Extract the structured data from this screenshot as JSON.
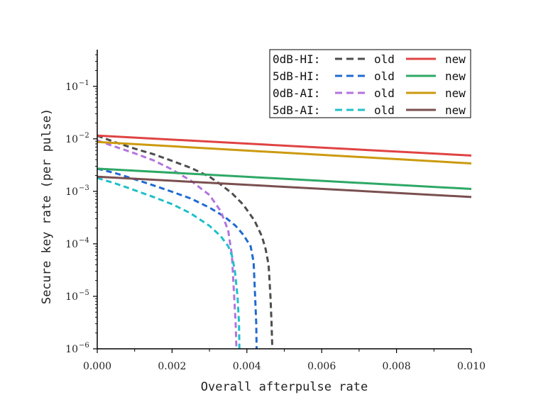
{
  "chart_data": {
    "type": "line",
    "xlabel": "Overall afterpulse rate",
    "ylabel": "Secure key rate (per pulse)",
    "xlim": [
      0,
      0.01
    ],
    "ylim": [
      1e-06,
      0.5
    ],
    "yscale": "log",
    "x_ticks": [
      {
        "value": 0,
        "label": "0.000"
      },
      {
        "value": 0.002,
        "label": "0.002"
      },
      {
        "value": 0.004,
        "label": "0.004"
      },
      {
        "value": 0.006,
        "label": "0.006"
      },
      {
        "value": 0.008,
        "label": "0.008"
      },
      {
        "value": 0.01,
        "label": "0.010"
      }
    ],
    "y_ticks": [
      {
        "value": 1e-06,
        "base": "10",
        "exp": "−6"
      },
      {
        "value": 1e-05,
        "base": "10",
        "exp": "−5"
      },
      {
        "value": 0.0001,
        "base": "10",
        "exp": "−4"
      },
      {
        "value": 0.001,
        "base": "10",
        "exp": "−3"
      },
      {
        "value": 0.01,
        "base": "10",
        "exp": "−2"
      },
      {
        "value": 0.1,
        "base": "10",
        "exp": "−1"
      }
    ],
    "legend": {
      "placement": "top-right",
      "rows": [
        {
          "label": "0dB-HI:",
          "old": "old",
          "new": "new"
        },
        {
          "label": "5dB-HI:",
          "old": "old",
          "new": "new"
        },
        {
          "label": "0dB-AI:",
          "old": "old",
          "new": "new"
        },
        {
          "label": "5dB-AI:",
          "old": "old",
          "new": "new"
        }
      ]
    },
    "series": [
      {
        "name": "0dB-HI old",
        "style": "dashed",
        "color": "#4d4d4d",
        "x": [
          0,
          0.0005,
          0.001,
          0.0015,
          0.002,
          0.0025,
          0.003,
          0.0033,
          0.0036,
          0.0039,
          0.0042,
          0.0044,
          0.0045,
          0.00458,
          0.00463,
          0.00466,
          0.00468
        ],
        "y": [
          0.0115,
          0.0085,
          0.0065,
          0.0051,
          0.0038,
          0.0028,
          0.0019,
          0.00135,
          0.00092,
          0.00056,
          0.00028,
          0.00014,
          8e-05,
          4e-05,
          1e-05,
          3e-06,
          1e-06
        ]
      },
      {
        "name": "5dB-HI old",
        "style": "dashed",
        "color": "#1f6ad1",
        "x": [
          0,
          0.0005,
          0.001,
          0.0015,
          0.002,
          0.0025,
          0.003,
          0.0034,
          0.0037,
          0.0039,
          0.0041,
          0.00418,
          0.00422,
          0.00425,
          0.00426
        ],
        "y": [
          0.0027,
          0.0022,
          0.0017,
          0.0013,
          0.00098,
          0.00073,
          0.00049,
          0.00033,
          0.00022,
          0.00015,
          9e-05,
          4.5e-05,
          1e-05,
          3e-06,
          1e-06
        ]
      },
      {
        "name": "0dB-AI old",
        "style": "dashed",
        "color": "#b473dc",
        "x": [
          0,
          0.0005,
          0.001,
          0.0015,
          0.002,
          0.0025,
          0.003,
          0.0033,
          0.0035,
          0.0036,
          0.00366,
          0.0037,
          0.00372
        ],
        "y": [
          0.0093,
          0.007,
          0.0053,
          0.0039,
          0.0026,
          0.0016,
          0.00085,
          0.00042,
          0.00018,
          6e-05,
          1e-05,
          3e-06,
          1e-06
        ]
      },
      {
        "name": "5dB-AI old",
        "style": "dashed",
        "color": "#1fc0c9",
        "x": [
          0,
          0.0005,
          0.001,
          0.0015,
          0.002,
          0.0025,
          0.003,
          0.0033,
          0.0035,
          0.0036,
          0.00368,
          0.00375,
          0.00379,
          0.0038
        ],
        "y": [
          0.0018,
          0.0014,
          0.00105,
          0.00078,
          0.00057,
          0.00038,
          0.00022,
          0.00014,
          9e-05,
          6e-05,
          3e-05,
          1e-05,
          3e-06,
          1e-06
        ]
      },
      {
        "name": "0dB-HI new",
        "style": "solid",
        "color": "#e04343",
        "x": [
          0,
          0.01
        ],
        "y": [
          0.0115,
          0.0048
        ]
      },
      {
        "name": "5dB-HI new",
        "style": "solid",
        "color": "#2ea866",
        "x": [
          0,
          0.01
        ],
        "y": [
          0.0027,
          0.00111
        ]
      },
      {
        "name": "0dB-AI new",
        "style": "solid",
        "color": "#cc9a0e",
        "x": [
          0,
          0.01
        ],
        "y": [
          0.0087,
          0.0034
        ]
      },
      {
        "name": "5dB-AI new",
        "style": "solid",
        "color": "#7a4f4f",
        "x": [
          0,
          0.01
        ],
        "y": [
          0.0019,
          0.00078
        ]
      }
    ]
  }
}
